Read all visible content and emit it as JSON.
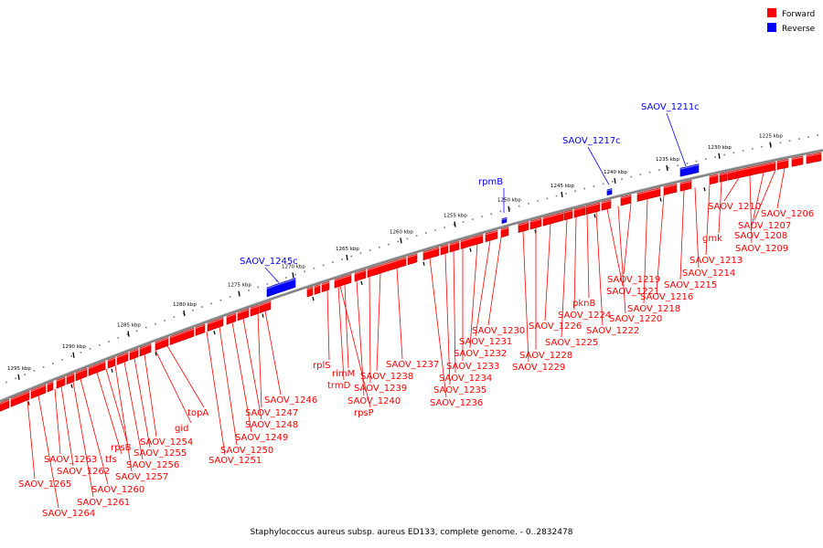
{
  "legend": [
    {
      "label": "Forward",
      "color": "#ff0000"
    },
    {
      "label": "Reverse",
      "color": "#0000ff"
    }
  ],
  "caption": "Staphylococcus aureus subsp. aureus ED133, complete genome. - 0..2832478",
  "colors": {
    "forward": "#ff0000",
    "reverse": "#0000ff",
    "backbone": "#808080"
  },
  "ticks": [
    {
      "label": "1225 kbp"
    },
    {
      "label": "1230 kbp"
    },
    {
      "label": "1235 kbp"
    },
    {
      "label": "1240 kbp"
    },
    {
      "label": "1245 kbp"
    },
    {
      "label": "1250 kbp"
    },
    {
      "label": "1255 kbp"
    },
    {
      "label": "1260 kbp"
    },
    {
      "label": "1265 kbp"
    },
    {
      "label": "1270 kbp"
    },
    {
      "label": "1275 kbp"
    },
    {
      "label": "1280 kbp"
    },
    {
      "label": "1285 kbp"
    },
    {
      "label": "1290 kbp"
    },
    {
      "label": "1295 kbp"
    }
  ],
  "reverse_genes": [
    "SAOV_1211c",
    "SAOV_1217c",
    "rpmB",
    "SAOV_1245c"
  ],
  "forward_genes": [
    "SAOV_1206",
    "SAOV_1207",
    "SAOV_1208",
    "SAOV_1209",
    "SAOV_1210",
    "gmk",
    "SAOV_1213",
    "SAOV_1214",
    "SAOV_1215",
    "SAOV_1216",
    "SAOV_1218",
    "SAOV_1219",
    "SAOV_1220",
    "SAOV_1221",
    "SAOV_1222",
    "pknB",
    "SAOV_1224",
    "SAOV_1225",
    "SAOV_1226",
    "SAOV_1228",
    "SAOV_1229",
    "SAOV_1230",
    "SAOV_1231",
    "SAOV_1232",
    "SAOV_1233",
    "SAOV_1234",
    "SAOV_1235",
    "SAOV_1236",
    "SAOV_1237",
    "SAOV_1238",
    "SAOV_1239",
    "SAOV_1240",
    "rimM",
    "trmD",
    "rpsP",
    "rplS",
    "SAOV_1246",
    "SAOV_1247",
    "SAOV_1248",
    "SAOV_1249",
    "SAOV_1250",
    "SAOV_1251",
    "topA",
    "gid",
    "SAOV_1254",
    "SAOV_1255",
    "SAOV_1256",
    "SAOV_1257",
    "rpsB",
    "tfs",
    "SAOV_1260",
    "SAOV_1261",
    "SAOV_1262",
    "SAOV_1263",
    "SAOV_1264",
    "SAOV_1265"
  ]
}
